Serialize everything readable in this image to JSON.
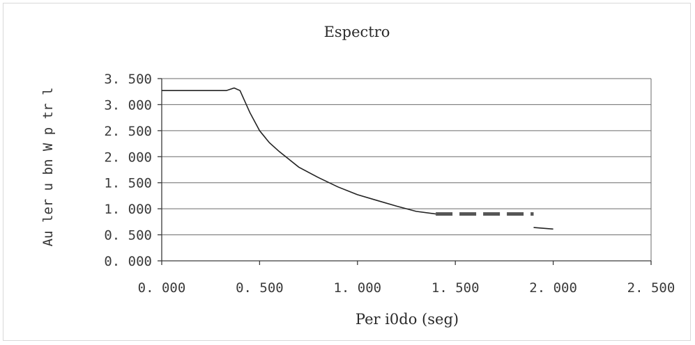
{
  "chart_data": {
    "type": "line",
    "title": "Espectro",
    "xlabel": "Per i0do   (seg)",
    "ylabel": "Au ler u bn W p tr l",
    "xlim": [
      0,
      2.5
    ],
    "ylim": [
      0,
      3.5
    ],
    "x_ticks": [
      "0. 000",
      "0. 500",
      "1. 000",
      "1. 500",
      "2. 000",
      "2. 500"
    ],
    "y_ticks": [
      "0. 000",
      "0. 500",
      "1. 000",
      "1. 500",
      "2. 000",
      "2. 500",
      "3. 000",
      "3. 500"
    ],
    "grid": true,
    "series": [
      {
        "x": [
          0.0,
          0.33,
          0.37,
          0.4,
          0.45,
          0.5,
          0.55,
          0.6,
          0.7,
          0.8,
          0.9,
          1.0,
          1.1,
          1.2,
          1.3,
          1.4
        ],
        "y": [
          3.27,
          3.27,
          3.32,
          3.27,
          2.85,
          2.5,
          2.27,
          2.1,
          1.8,
          1.6,
          1.42,
          1.27,
          1.16,
          1.05,
          0.95,
          0.9
        ]
      },
      {
        "x": [
          1.4,
          1.9
        ],
        "y": [
          0.9,
          0.9
        ],
        "style": "dashed"
      },
      {
        "x": [
          1.9,
          2.0
        ],
        "y": [
          0.64,
          0.61
        ]
      }
    ]
  }
}
